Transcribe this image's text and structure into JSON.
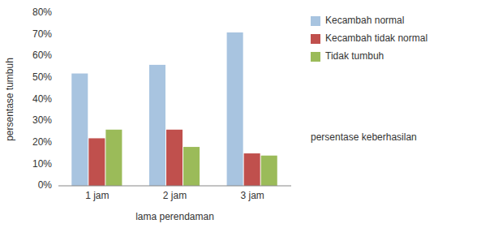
{
  "chart_data": {
    "type": "bar",
    "categories": [
      "1 jam",
      "2 jam",
      "3 jam"
    ],
    "series": [
      {
        "name": "Kecambah normal",
        "values": [
          52,
          56,
          71
        ],
        "color": "#a8c4e0"
      },
      {
        "name": "Kecambah tidak normal",
        "values": [
          22,
          26,
          15
        ],
        "color": "#c0504d"
      },
      {
        "name": "Tidak tumbuh",
        "values": [
          26,
          18,
          14
        ],
        "color": "#9bbb59"
      }
    ],
    "xlabel": "lama perendaman",
    "ylabel": "persentase tumbuh",
    "annotations": [
      "persentase keberhasilan"
    ],
    "ylim": [
      0,
      80
    ],
    "yticks": [
      {
        "value": 0,
        "label": "0%"
      },
      {
        "value": 10,
        "label": "10%"
      },
      {
        "value": 20,
        "label": "20%"
      },
      {
        "value": 30,
        "label": "30%"
      },
      {
        "value": 40,
        "label": "40%"
      },
      {
        "value": 50,
        "label": "50%"
      },
      {
        "value": 60,
        "label": "60%"
      },
      {
        "value": 70,
        "label": "70%"
      },
      {
        "value": 80,
        "label": "80%"
      }
    ],
    "grid": false,
    "legend": "right"
  }
}
